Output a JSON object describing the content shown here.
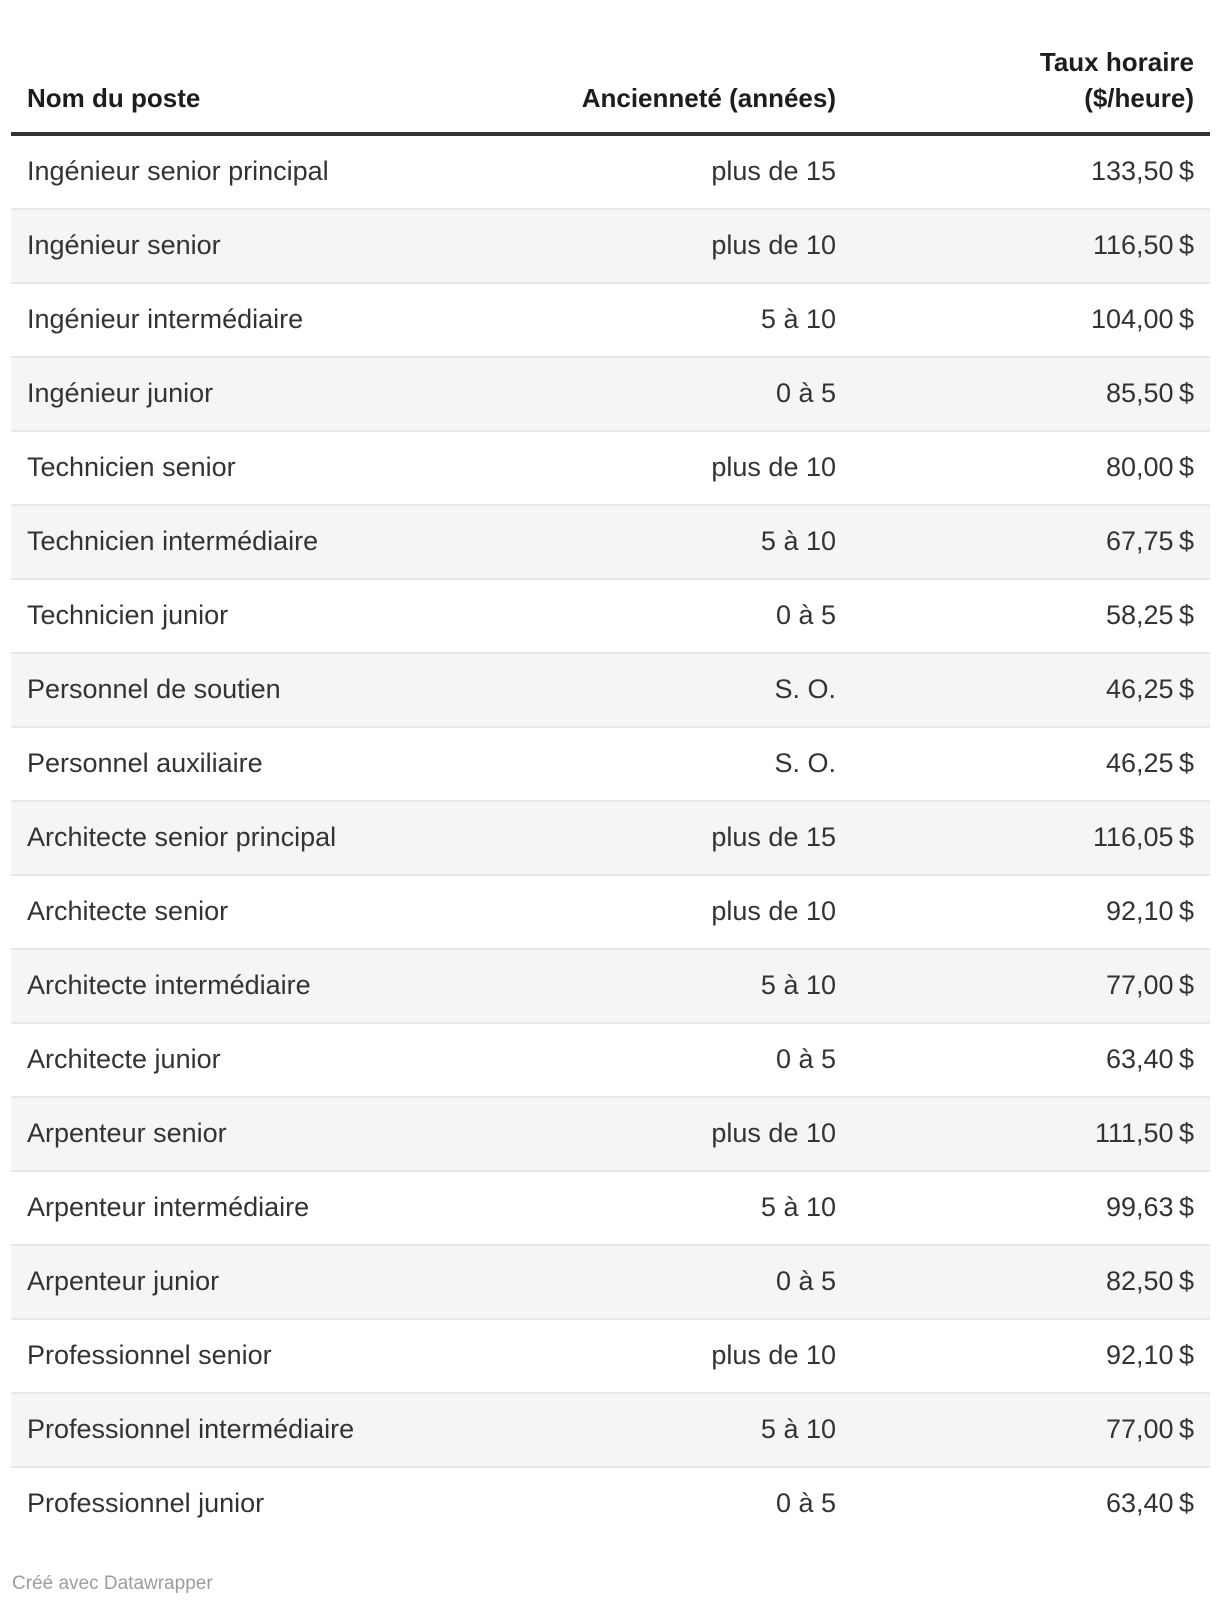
{
  "chart_data": {
    "type": "table",
    "title": "",
    "headers": {
      "poste": "Nom du poste",
      "anciennete": "Ancienneté (années)",
      "taux": "Taux horaire\n($/heure)"
    },
    "rows": [
      {
        "poste": "Ingénieur senior principal",
        "anciennete": "plus de 15",
        "taux": "133,50 $"
      },
      {
        "poste": "Ingénieur senior",
        "anciennete": "plus de 10",
        "taux": "116,50 $"
      },
      {
        "poste": "Ingénieur intermédiaire",
        "anciennete": "5 à 10",
        "taux": "104,00 $"
      },
      {
        "poste": "Ingénieur junior",
        "anciennete": "0 à 5",
        "taux": "85,50 $"
      },
      {
        "poste": "Technicien senior",
        "anciennete": "plus de 10",
        "taux": "80,00 $"
      },
      {
        "poste": "Technicien intermédiaire",
        "anciennete": "5 à 10",
        "taux": "67,75 $"
      },
      {
        "poste": "Technicien junior",
        "anciennete": "0 à 5",
        "taux": "58,25 $"
      },
      {
        "poste": "Personnel de soutien",
        "anciennete": "S. O.",
        "taux": "46,25 $"
      },
      {
        "poste": "Personnel auxiliaire",
        "anciennete": "S. O.",
        "taux": "46,25 $"
      },
      {
        "poste": "Architecte senior principal",
        "anciennete": "plus de 15",
        "taux": "116,05 $"
      },
      {
        "poste": "Architecte senior",
        "anciennete": "plus de 10",
        "taux": "92,10 $"
      },
      {
        "poste": "Architecte intermédiaire",
        "anciennete": "5 à 10",
        "taux": "77,00 $"
      },
      {
        "poste": "Architecte junior",
        "anciennete": "0 à 5",
        "taux": "63,40 $"
      },
      {
        "poste": "Arpenteur senior",
        "anciennete": "plus de 10",
        "taux": "111,50 $"
      },
      {
        "poste": "Arpenteur intermédiaire",
        "anciennete": "5 à 10",
        "taux": "99,63 $"
      },
      {
        "poste": "Arpenteur junior",
        "anciennete": "0 à 5",
        "taux": "82,50 $"
      },
      {
        "poste": "Professionnel senior",
        "anciennete": "plus de 10",
        "taux": "92,10 $"
      },
      {
        "poste": "Professionnel intermédiaire",
        "anciennete": "5 à 10",
        "taux": "77,00 $"
      },
      {
        "poste": "Professionnel junior",
        "anciennete": "0 à 5",
        "taux": "63,40 $"
      }
    ],
    "layout": {
      "zebra_stripes": true,
      "column_alignment": [
        "left",
        "right",
        "right"
      ]
    }
  },
  "colors": {
    "header_rule": "#333333",
    "row_border": "#e8e8e8",
    "stripe": "#f5f5f5",
    "body_text": "#333333",
    "header_text": "#1d1d1d",
    "footer_text": "#9d9d9d"
  },
  "footer": {
    "credit": "Créé avec Datawrapper"
  }
}
